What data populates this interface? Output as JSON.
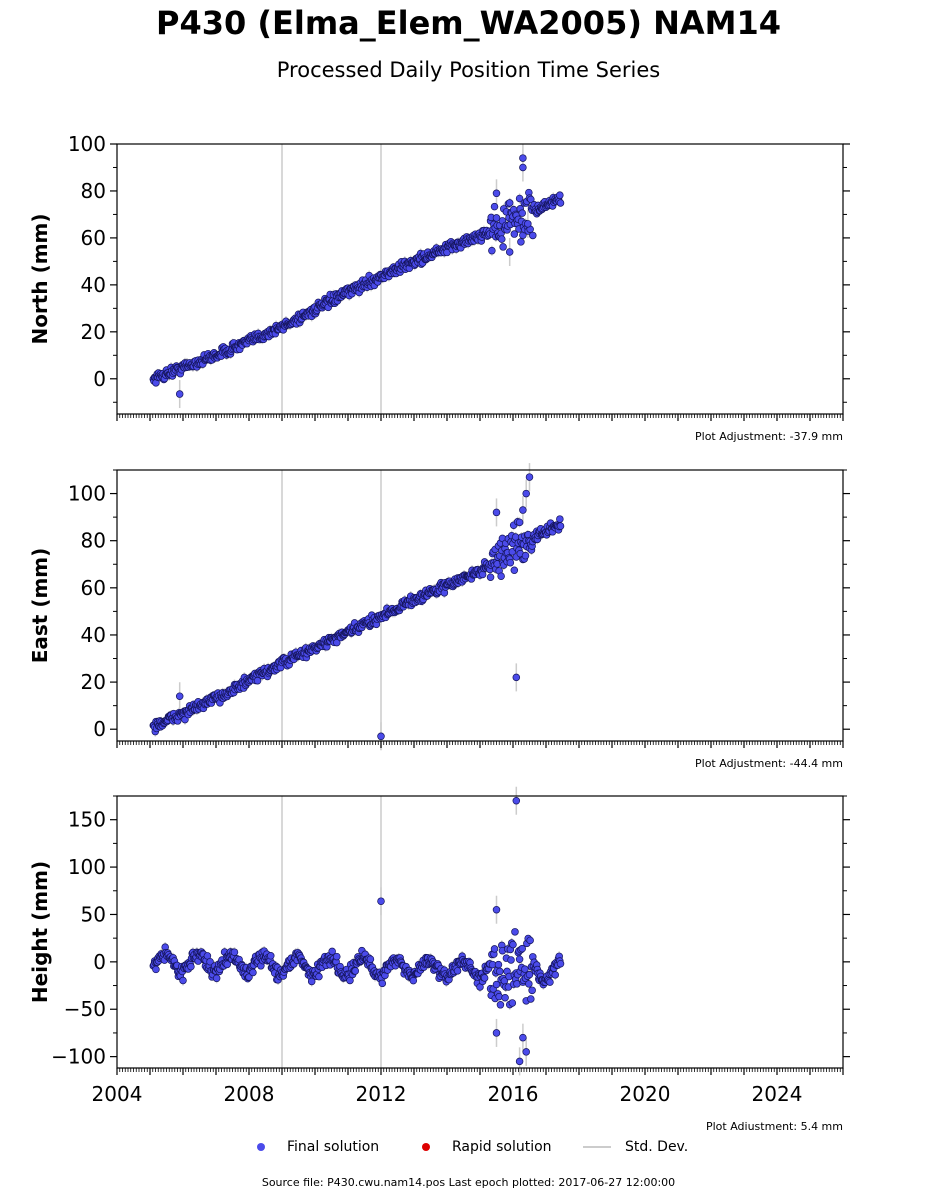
{
  "page": {
    "title": "P430 (Elma_Elem_WA2005) NAM14",
    "subtitle": "Processed Daily Position Time Series",
    "footer": "Source file: P430.cwu.nam14.pos  Last epoch plotted: 2017-06-27 12:00:00"
  },
  "legend": {
    "final": "Final solution",
    "rapid": "Rapid solution",
    "stddev": "Std. Dev."
  },
  "colors": {
    "final": "#4b4bea",
    "rapid": "#dd0000",
    "stddev": "#cccccc",
    "event_line": "#cccccc"
  },
  "chart_data": [
    {
      "type": "scatter",
      "ylabel": "North (mm)",
      "adjustment": "Plot Adjustment: -37.9 mm",
      "xlim": [
        2004,
        2026
      ],
      "ylim": [
        -15,
        100
      ],
      "yticks": [
        0,
        20,
        40,
        60,
        80,
        100
      ],
      "event_lines": [
        2009.0,
        2012.0
      ],
      "trend": [
        [
          2005.1,
          0
        ],
        [
          2007.0,
          10
        ],
        [
          2009.0,
          22
        ],
        [
          2011.0,
          37
        ],
        [
          2013.0,
          50
        ],
        [
          2015.0,
          61
        ],
        [
          2016.0,
          67
        ],
        [
          2017.45,
          77
        ]
      ],
      "outliers": [
        [
          2005.9,
          -6.5
        ],
        [
          2015.5,
          79
        ],
        [
          2015.9,
          54
        ],
        [
          2016.3,
          94
        ],
        [
          2016.3,
          90
        ],
        [
          2016.45,
          66
        ]
      ],
      "noisy_window": [
        2015.3,
        2016.6
      ],
      "noise_amp": 1.5,
      "noisy_amp": 7
    },
    {
      "type": "scatter",
      "ylabel": "East (mm)",
      "adjustment": "Plot Adjustment: -44.4 mm",
      "xlim": [
        2004,
        2026
      ],
      "ylim": [
        -5,
        110
      ],
      "yticks": [
        0,
        20,
        40,
        60,
        80,
        100
      ],
      "event_lines": [
        2009.0,
        2012.0
      ],
      "trend": [
        [
          2005.1,
          1
        ],
        [
          2007.0,
          13
        ],
        [
          2009.0,
          28
        ],
        [
          2011.0,
          41
        ],
        [
          2013.0,
          55
        ],
        [
          2015.0,
          67
        ],
        [
          2016.0,
          77
        ],
        [
          2017.45,
          87
        ]
      ],
      "outliers": [
        [
          2005.9,
          14
        ],
        [
          2012.0,
          -3
        ],
        [
          2015.5,
          92
        ],
        [
          2016.1,
          22
        ],
        [
          2016.3,
          93
        ],
        [
          2016.5,
          107
        ],
        [
          2016.4,
          100
        ]
      ],
      "noisy_window": [
        2015.3,
        2016.6
      ],
      "noise_amp": 1.5,
      "noisy_amp": 6
    },
    {
      "type": "scatter",
      "ylabel": "Height (mm)",
      "adjustment": "Plot Adjustment: 5.4 mm",
      "xlim": [
        2004,
        2026
      ],
      "ylim": [
        -112,
        175
      ],
      "yticks": [
        -100,
        -50,
        0,
        50,
        100,
        150
      ],
      "xticks": [
        2004,
        2008,
        2012,
        2016,
        2020,
        2024
      ],
      "event_lines": [
        2009.0,
        2012.0
      ],
      "trend": [
        [
          2005.1,
          0
        ],
        [
          2017.45,
          -10
        ]
      ],
      "outliers": [
        [
          2012.0,
          64
        ],
        [
          2015.5,
          55
        ],
        [
          2015.5,
          -75
        ],
        [
          2016.1,
          170
        ],
        [
          2016.2,
          -105
        ],
        [
          2016.4,
          -95
        ],
        [
          2016.3,
          -80
        ]
      ],
      "seasonal_amp": 9,
      "noisy_window": [
        2015.3,
        2016.6
      ],
      "noise_amp": 5,
      "noisy_amp": 30
    }
  ]
}
